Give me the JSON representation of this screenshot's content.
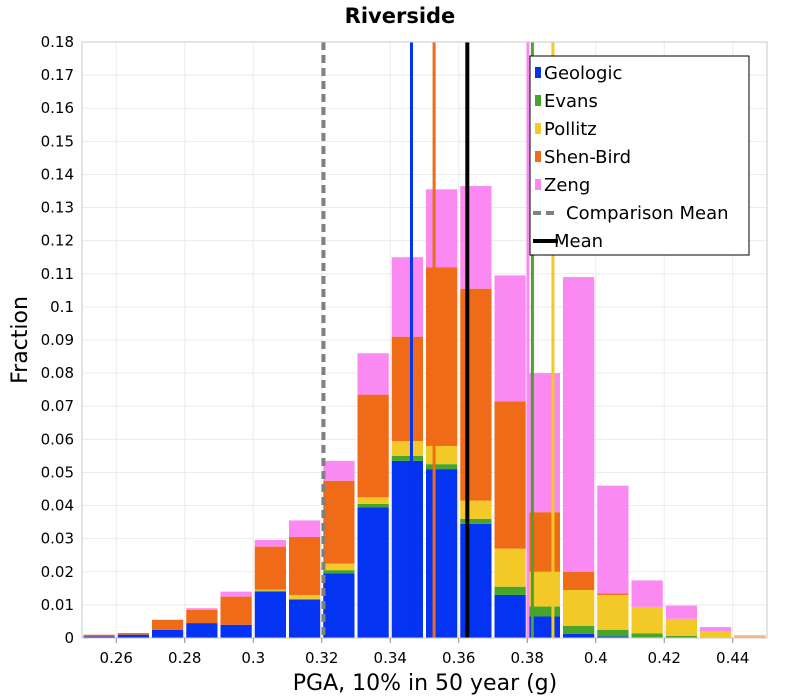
{
  "chart_data": {
    "type": "bar",
    "stacked": true,
    "title": "Riverside",
    "xlabel": "PGA, 10% in 50 year (g)",
    "ylabel": "Fraction",
    "xlim": [
      0.25,
      0.45
    ],
    "ylim": [
      0,
      0.18
    ],
    "bin_width": 0.01,
    "grid": true,
    "legend_position": "top-right",
    "x_ticks": [
      "0.26",
      "0.28",
      "0.3",
      "0.32",
      "0.34",
      "0.36",
      "0.38",
      "0.4",
      "0.42",
      "0.44"
    ],
    "y_ticks": [
      "0",
      "0.01",
      "0.02",
      "0.03",
      "0.04",
      "0.05",
      "0.06",
      "0.07",
      "0.08",
      "0.09",
      "0.1",
      "0.11",
      "0.12",
      "0.13",
      "0.14",
      "0.15",
      "0.16",
      "0.17",
      "0.18"
    ],
    "bin_centers": [
      0.255,
      0.265,
      0.275,
      0.285,
      0.295,
      0.305,
      0.315,
      0.325,
      0.335,
      0.345,
      0.355,
      0.365,
      0.375,
      0.385,
      0.395,
      0.405,
      0.415,
      0.425,
      0.435,
      0.445
    ],
    "series": [
      {
        "name": "Geologic",
        "color": "#0533f2",
        "values": [
          0.0005,
          0.001,
          0.0025,
          0.0045,
          0.004,
          0.014,
          0.0115,
          0.0195,
          0.0395,
          0.0535,
          0.051,
          0.0345,
          0.013,
          0.0065,
          0.0012,
          0.0005,
          0.0002,
          0.0001,
          0.0,
          0.0
        ]
      },
      {
        "name": "Evans",
        "color": "#47a52b",
        "values": [
          0.0,
          0.0,
          0.0,
          0.0,
          0.0,
          0.0003,
          0.0003,
          0.001,
          0.001,
          0.0015,
          0.0015,
          0.0015,
          0.0025,
          0.003,
          0.0025,
          0.002,
          0.0012,
          0.0005,
          0.0002,
          0.0
        ]
      },
      {
        "name": "Pollitz",
        "color": "#f2c926",
        "values": [
          0.0,
          0.0,
          0.0,
          0.0,
          0.0,
          0.0003,
          0.0012,
          0.002,
          0.002,
          0.0045,
          0.0055,
          0.0055,
          0.0115,
          0.0105,
          0.0108,
          0.0105,
          0.008,
          0.0052,
          0.0018,
          0.0005
        ]
      },
      {
        "name": "Shen-Bird",
        "color": "#f06b18",
        "values": [
          0.0005,
          0.0005,
          0.003,
          0.004,
          0.0085,
          0.013,
          0.0175,
          0.025,
          0.031,
          0.0315,
          0.054,
          0.064,
          0.0445,
          0.018,
          0.0055,
          0.0005,
          0.0,
          0.0,
          0.0,
          0.0
        ]
      },
      {
        "name": "Zeng",
        "color": "#fa89f1",
        "values": [
          0.0,
          0.0,
          0.0,
          0.0005,
          0.0015,
          0.002,
          0.005,
          0.006,
          0.0125,
          0.024,
          0.0235,
          0.031,
          0.038,
          0.042,
          0.089,
          0.0325,
          0.008,
          0.004,
          0.0013,
          0.0003
        ]
      }
    ],
    "lines": [
      {
        "name": "Comparison Mean",
        "x": 0.3205,
        "color": "#808080",
        "dashed": true
      },
      {
        "name": "Mean",
        "x": 0.3625,
        "color": "#000000",
        "dashed": false
      },
      {
        "series": "Geologic",
        "x": 0.3462,
        "color": "#0533f2",
        "dashed": false
      },
      {
        "series": "Shen-Bird",
        "x": 0.3528,
        "color": "#f06b18",
        "dashed": false
      },
      {
        "series": "Zeng",
        "x": 0.3802,
        "color": "#fa89f1",
        "dashed": false
      },
      {
        "series": "Evans",
        "x": 0.3815,
        "color": "#47a52b",
        "dashed": false
      },
      {
        "series": "Pollitz",
        "x": 0.3875,
        "color": "#f2c926",
        "dashed": false
      }
    ],
    "legend": [
      {
        "label": "Geologic",
        "color": "#0533f2",
        "kind": "box"
      },
      {
        "label": "Evans",
        "color": "#47a52b",
        "kind": "box"
      },
      {
        "label": "Pollitz",
        "color": "#f2c926",
        "kind": "box"
      },
      {
        "label": "Shen-Bird",
        "color": "#f06b18",
        "kind": "box"
      },
      {
        "label": "Zeng",
        "color": "#fa89f1",
        "kind": "box"
      },
      {
        "label": "Comparison Mean",
        "color": "#808080",
        "kind": "dashed-line"
      },
      {
        "label": "Mean",
        "color": "#000000",
        "kind": "line"
      }
    ]
  }
}
